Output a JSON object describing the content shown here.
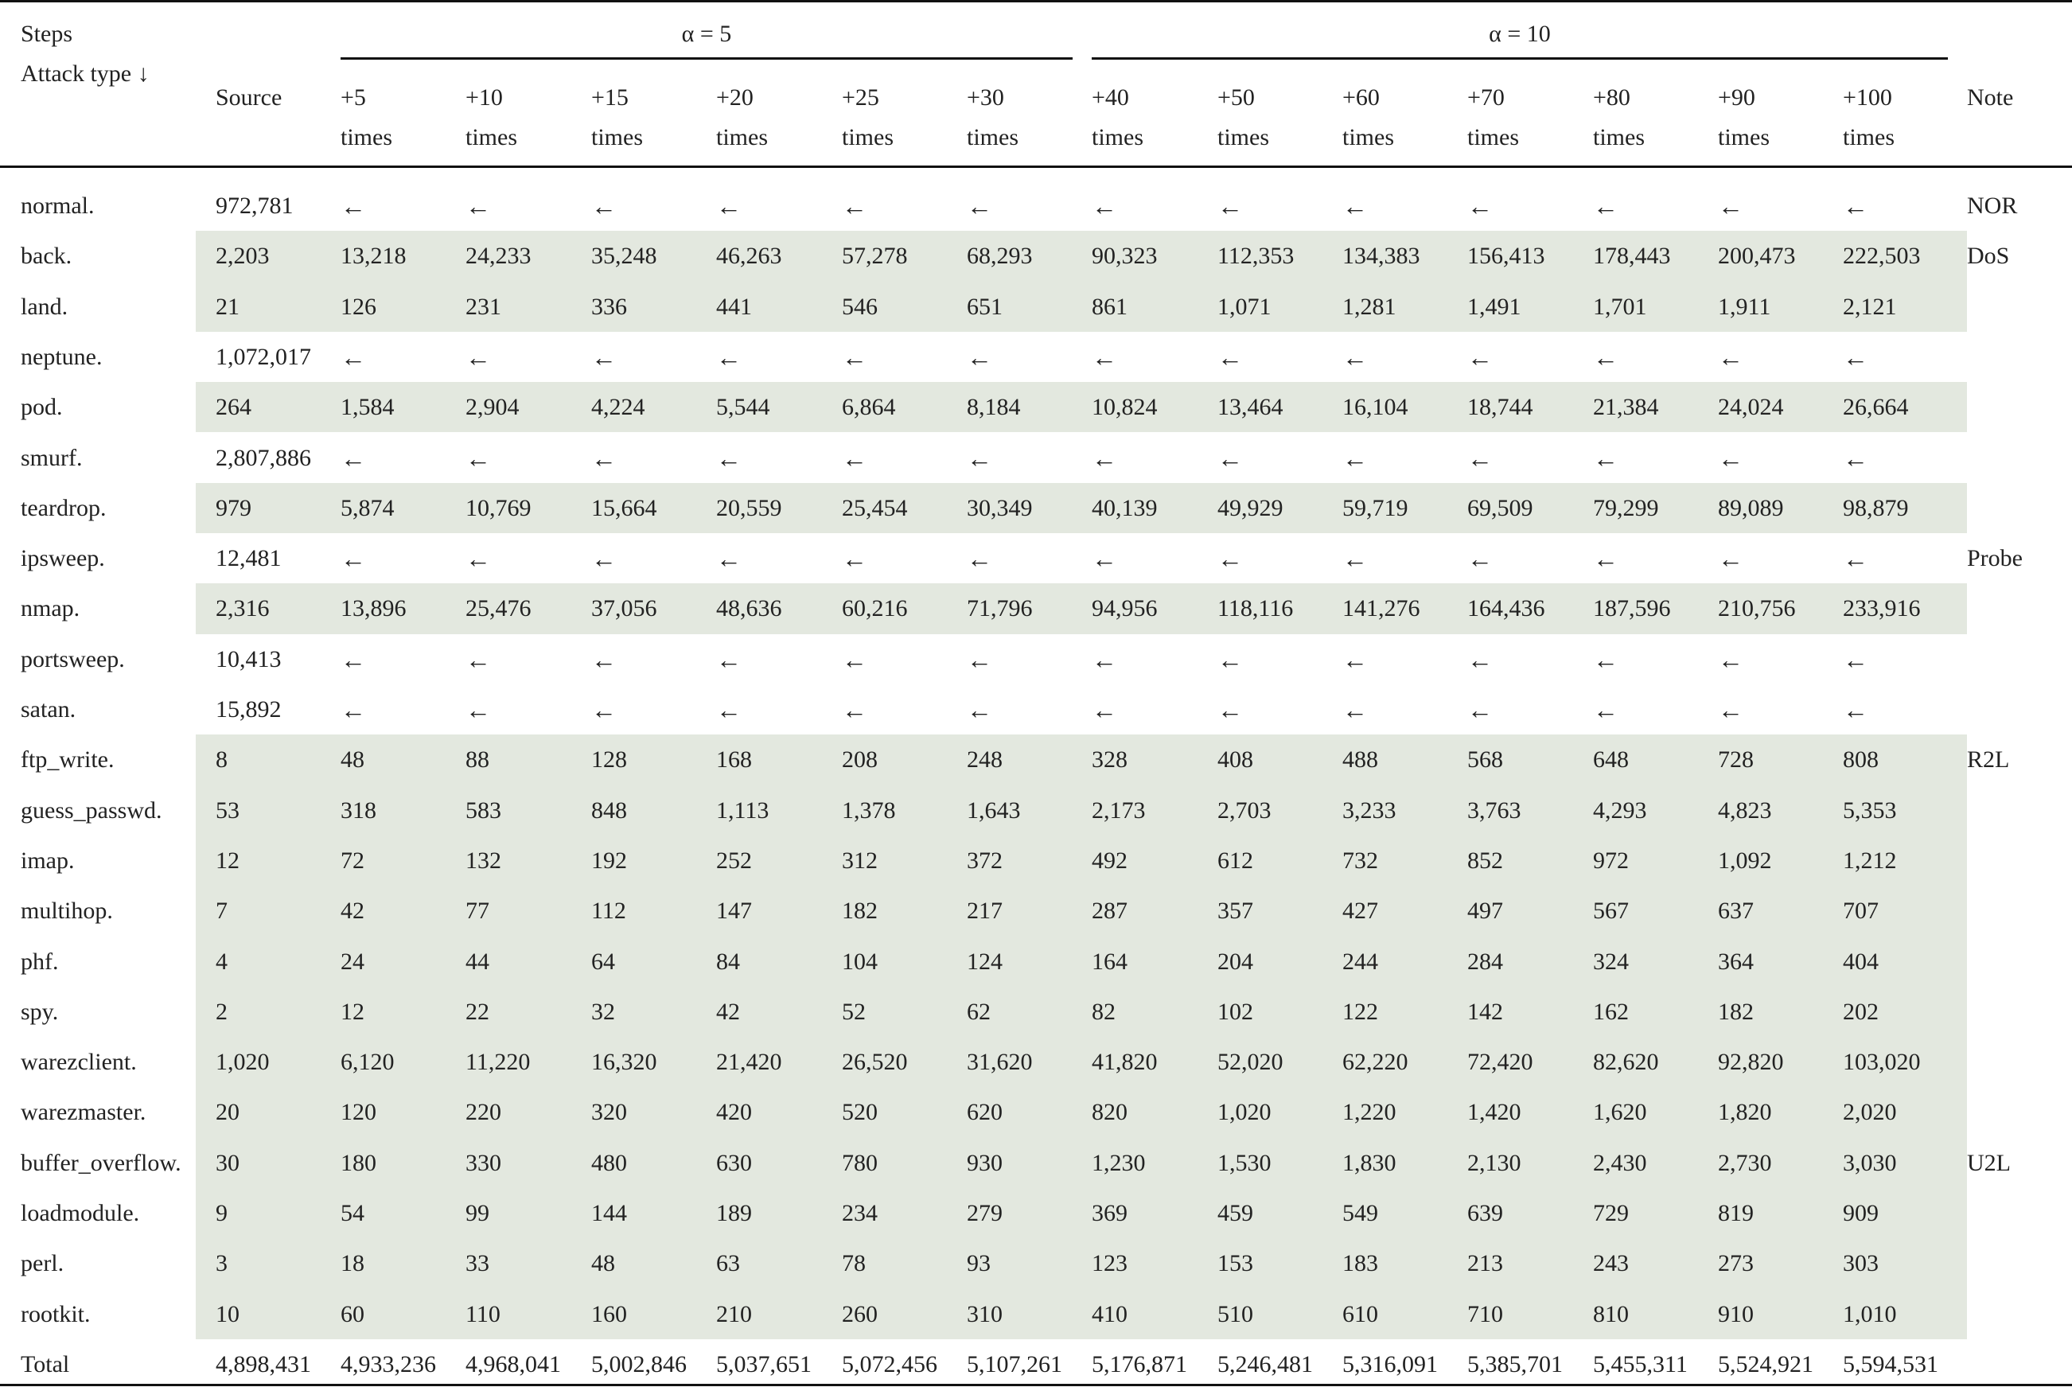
{
  "table": {
    "corner": {
      "steps": "Steps",
      "attack_type": "Attack type ↓"
    },
    "groups": [
      {
        "label": "α = 5"
      },
      {
        "label": "α = 10"
      }
    ],
    "columns": [
      {
        "l1": "Source",
        "l2": ""
      },
      {
        "l1": "+5",
        "l2": "times"
      },
      {
        "l1": "+10",
        "l2": "times"
      },
      {
        "l1": "+15",
        "l2": "times"
      },
      {
        "l1": "+20",
        "l2": "times"
      },
      {
        "l1": "+25",
        "l2": "times"
      },
      {
        "l1": "+30",
        "l2": "times"
      },
      {
        "l1": "+40",
        "l2": "times"
      },
      {
        "l1": "+50",
        "l2": "times"
      },
      {
        "l1": "+60",
        "l2": "times"
      },
      {
        "l1": "+70",
        "l2": "times"
      },
      {
        "l1": "+80",
        "l2": "times"
      },
      {
        "l1": "+90",
        "l2": "times"
      },
      {
        "l1": "+100",
        "l2": "times"
      }
    ],
    "note_header": "Note",
    "rows": [
      {
        "name": "normal.",
        "shaded": false,
        "note": "NOR",
        "values": [
          "972,781",
          "←",
          "←",
          "←",
          "←",
          "←",
          "←",
          "←",
          "←",
          "←",
          "←",
          "←",
          "←",
          "←"
        ]
      },
      {
        "name": "back.",
        "shaded": true,
        "note": "DoS",
        "values": [
          "2,203",
          "13,218",
          "24,233",
          "35,248",
          "46,263",
          "57,278",
          "68,293",
          "90,323",
          "112,353",
          "134,383",
          "156,413",
          "178,443",
          "200,473",
          "222,503"
        ]
      },
      {
        "name": "land.",
        "shaded": true,
        "note": "",
        "values": [
          "21",
          "126",
          "231",
          "336",
          "441",
          "546",
          "651",
          "861",
          "1,071",
          "1,281",
          "1,491",
          "1,701",
          "1,911",
          "2,121"
        ]
      },
      {
        "name": "neptune.",
        "shaded": false,
        "note": "",
        "values": [
          "1,072,017",
          "←",
          "←",
          "←",
          "←",
          "←",
          "←",
          "←",
          "←",
          "←",
          "←",
          "←",
          "←",
          "←"
        ]
      },
      {
        "name": "pod.",
        "shaded": true,
        "note": "",
        "values": [
          "264",
          "1,584",
          "2,904",
          "4,224",
          "5,544",
          "6,864",
          "8,184",
          "10,824",
          "13,464",
          "16,104",
          "18,744",
          "21,384",
          "24,024",
          "26,664"
        ]
      },
      {
        "name": "smurf.",
        "shaded": false,
        "note": "",
        "values": [
          "2,807,886",
          "←",
          "←",
          "←",
          "←",
          "←",
          "←",
          "←",
          "←",
          "←",
          "←",
          "←",
          "←",
          "←"
        ]
      },
      {
        "name": "teardrop.",
        "shaded": true,
        "note": "",
        "values": [
          "979",
          "5,874",
          "10,769",
          "15,664",
          "20,559",
          "25,454",
          "30,349",
          "40,139",
          "49,929",
          "59,719",
          "69,509",
          "79,299",
          "89,089",
          "98,879"
        ]
      },
      {
        "name": "ipsweep.",
        "shaded": false,
        "note": "Probe",
        "values": [
          "12,481",
          "←",
          "←",
          "←",
          "←",
          "←",
          "←",
          "←",
          "←",
          "←",
          "←",
          "←",
          "←",
          "←"
        ]
      },
      {
        "name": "nmap.",
        "shaded": true,
        "note": "",
        "values": [
          "2,316",
          "13,896",
          "25,476",
          "37,056",
          "48,636",
          "60,216",
          "71,796",
          "94,956",
          "118,116",
          "141,276",
          "164,436",
          "187,596",
          "210,756",
          "233,916"
        ]
      },
      {
        "name": "portsweep.",
        "shaded": false,
        "note": "",
        "values": [
          "10,413",
          "←",
          "←",
          "←",
          "←",
          "←",
          "←",
          "←",
          "←",
          "←",
          "←",
          "←",
          "←",
          "←"
        ]
      },
      {
        "name": "satan.",
        "shaded": false,
        "note": "",
        "values": [
          "15,892",
          "←",
          "←",
          "←",
          "←",
          "←",
          "←",
          "←",
          "←",
          "←",
          "←",
          "←",
          "←",
          "←"
        ]
      },
      {
        "name": "ftp_write.",
        "shaded": true,
        "note": "R2L",
        "values": [
          "8",
          "48",
          "88",
          "128",
          "168",
          "208",
          "248",
          "328",
          "408",
          "488",
          "568",
          "648",
          "728",
          "808"
        ]
      },
      {
        "name": "guess_passwd.",
        "shaded": true,
        "note": "",
        "values": [
          "53",
          "318",
          "583",
          "848",
          "1,113",
          "1,378",
          "1,643",
          "2,173",
          "2,703",
          "3,233",
          "3,763",
          "4,293",
          "4,823",
          "5,353"
        ]
      },
      {
        "name": "imap.",
        "shaded": true,
        "note": "",
        "values": [
          "12",
          "72",
          "132",
          "192",
          "252",
          "312",
          "372",
          "492",
          "612",
          "732",
          "852",
          "972",
          "1,092",
          "1,212"
        ]
      },
      {
        "name": "multihop.",
        "shaded": true,
        "note": "",
        "values": [
          "7",
          "42",
          "77",
          "112",
          "147",
          "182",
          "217",
          "287",
          "357",
          "427",
          "497",
          "567",
          "637",
          "707"
        ]
      },
      {
        "name": "phf.",
        "shaded": true,
        "note": "",
        "values": [
          "4",
          "24",
          "44",
          "64",
          "84",
          "104",
          "124",
          "164",
          "204",
          "244",
          "284",
          "324",
          "364",
          "404"
        ]
      },
      {
        "name": "spy.",
        "shaded": true,
        "note": "",
        "values": [
          "2",
          "12",
          "22",
          "32",
          "42",
          "52",
          "62",
          "82",
          "102",
          "122",
          "142",
          "162",
          "182",
          "202"
        ]
      },
      {
        "name": "warezclient.",
        "shaded": true,
        "note": "",
        "values": [
          "1,020",
          "6,120",
          "11,220",
          "16,320",
          "21,420",
          "26,520",
          "31,620",
          "41,820",
          "52,020",
          "62,220",
          "72,420",
          "82,620",
          "92,820",
          "103,020"
        ]
      },
      {
        "name": "warezmaster.",
        "shaded": true,
        "note": "",
        "values": [
          "20",
          "120",
          "220",
          "320",
          "420",
          "520",
          "620",
          "820",
          "1,020",
          "1,220",
          "1,420",
          "1,620",
          "1,820",
          "2,020"
        ]
      },
      {
        "name": "buffer_overflow.",
        "shaded": true,
        "note": "U2L",
        "values": [
          "30",
          "180",
          "330",
          "480",
          "630",
          "780",
          "930",
          "1,230",
          "1,530",
          "1,830",
          "2,130",
          "2,430",
          "2,730",
          "3,030"
        ]
      },
      {
        "name": "loadmodule.",
        "shaded": true,
        "note": "",
        "values": [
          "9",
          "54",
          "99",
          "144",
          "189",
          "234",
          "279",
          "369",
          "459",
          "549",
          "639",
          "729",
          "819",
          "909"
        ]
      },
      {
        "name": "perl.",
        "shaded": true,
        "note": "",
        "values": [
          "3",
          "18",
          "33",
          "48",
          "63",
          "78",
          "93",
          "123",
          "153",
          "183",
          "213",
          "243",
          "273",
          "303"
        ]
      },
      {
        "name": "rootkit.",
        "shaded": true,
        "note": "",
        "values": [
          "10",
          "60",
          "110",
          "160",
          "210",
          "260",
          "310",
          "410",
          "510",
          "610",
          "710",
          "810",
          "910",
          "1,010"
        ]
      },
      {
        "name": "Total",
        "shaded": false,
        "note": "",
        "values": [
          "4,898,431",
          "4,933,236",
          "4,968,041",
          "5,002,846",
          "5,037,651",
          "5,072,456",
          "5,107,261",
          "5,176,871",
          "5,246,481",
          "5,316,091",
          "5,385,701",
          "5,455,311",
          "5,524,921",
          "5,594,531"
        ]
      }
    ]
  }
}
